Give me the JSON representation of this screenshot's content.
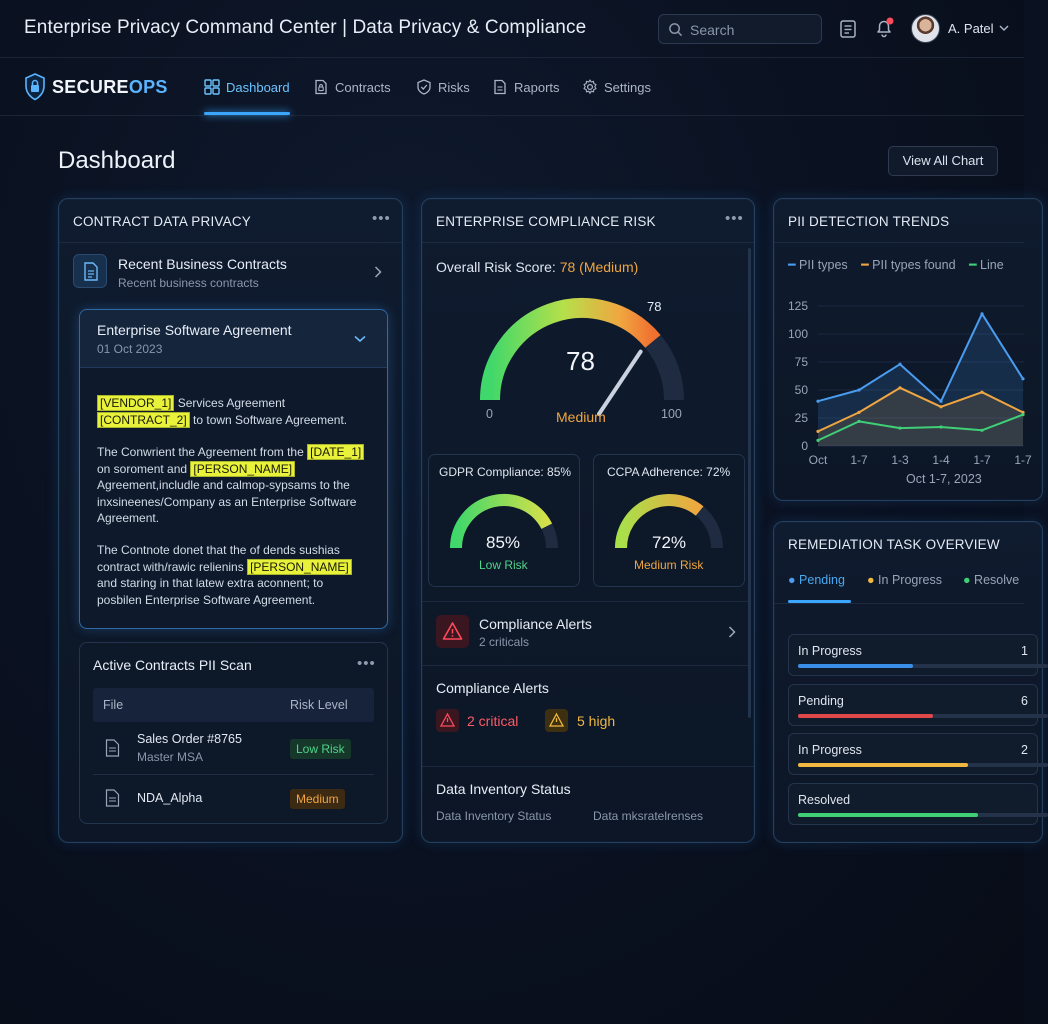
{
  "app": {
    "title": "Enterprise Privacy Command Center | Data Privacy & Compliance"
  },
  "header": {
    "search_placeholder": "Search",
    "user_name": "A. Patel"
  },
  "brand": {
    "name_part1": "SECURE",
    "name_part2": "OPS"
  },
  "nav": {
    "items": [
      {
        "label": "Dashboard",
        "icon": "grid-icon",
        "active": true
      },
      {
        "label": "Contracts",
        "icon": "lock-doc-icon"
      },
      {
        "label": "Risks",
        "icon": "shield-check-icon"
      },
      {
        "label": "Raports",
        "icon": "document-icon"
      },
      {
        "label": "Settings",
        "icon": "gear-icon"
      }
    ]
  },
  "page": {
    "title": "Dashboard",
    "view_all_label": "View All Chart"
  },
  "contract_card": {
    "title": "CONTRACT DATA PRIVACY",
    "recent": {
      "title": "Recent Business Contracts",
      "subtitle": "Recent business contracts"
    },
    "agreement": {
      "title": "Enterprise Software Agreement",
      "date": "01 Oct 2023",
      "p1": {
        "t1": "[VENDOR_1]",
        "t2": " Services Agreement ",
        "t3": "[CONTRACT_2]",
        "t4": " to town Software Agreement."
      },
      "p2": {
        "t1": "The Conwrient the Agreement from the ",
        "t2": "[DATE_1]",
        "t3": " on soroment and ",
        "t4": "[PERSON_NAME]",
        "t5": " Agreement,includle and calmop-sypsams to the inxsineenes/Company as an Enterprise Software Agreement."
      },
      "p3": {
        "t1": "The Contnote donet that the of dends sushias contract with/rawic relienins ",
        "t2": "[PERSON_NAME]",
        "t3": " and staring in that latew extra aconnent; to posbilen Enterprise Software Agreement."
      }
    },
    "scan": {
      "title": "Active Contracts PII Scan",
      "col_file": "File",
      "col_risk": "Risk Level",
      "rows": [
        {
          "file": "Sales Order #8765",
          "sub": "Master MSA",
          "risk": "Low Risk"
        },
        {
          "file": "NDA_Alpha",
          "sub": "",
          "risk": "Medium"
        }
      ]
    }
  },
  "risk_card": {
    "title": "ENTERPRISE COMPLIANCE RISK",
    "overall_label": "Overall Risk Score: ",
    "overall_value": "78 (Medium)",
    "gauge": {
      "value": 78,
      "display": "78",
      "peak_label": "78",
      "status": "Medium",
      "min": "0",
      "max": "100"
    },
    "gdpr": {
      "label": "GDPR Compliance: 85%",
      "value": 85,
      "display": "85%",
      "status": "Low Risk"
    },
    "ccpa": {
      "label": "CCPA Adherence: 72%",
      "value": 72,
      "display": "72%",
      "status": "Medium Risk"
    },
    "alerts_row": {
      "title": "Compliance Alerts",
      "subtitle": "2 criticals"
    },
    "alerts_summary": {
      "title": "Compliance Alerts",
      "critical": "2 critical",
      "high": "5 high"
    },
    "inventory": {
      "title": "Data Inventory Status",
      "sub1": "Data Inventory Status",
      "sub2": "Data mksratelrenses"
    }
  },
  "pii_card": {
    "title": "PII DETECTION TRENDS",
    "colors": {
      "series1": "#4a9cf0",
      "series2": "#f0a640",
      "series3": "#3fcf76"
    }
  },
  "chart_data": {
    "type": "line",
    "title": "PII DETECTION TRENDS",
    "x": [
      "Oct",
      "1-7",
      "1-3",
      "1-4",
      "1-7",
      "1-7"
    ],
    "xlabel": "Oct 1-7, 2023",
    "ylabel": "",
    "ylim": [
      0,
      125
    ],
    "yticks": [
      0,
      25,
      50,
      75,
      100,
      125
    ],
    "legend": "top",
    "series": [
      {
        "name": "PII types",
        "values": [
          40,
          50,
          73,
          40,
          118,
          60
        ]
      },
      {
        "name": "PII types found",
        "values": [
          13,
          30,
          52,
          35,
          48,
          30
        ]
      },
      {
        "name": "Line",
        "values": [
          5,
          22,
          16,
          17,
          14,
          28
        ]
      }
    ]
  },
  "remediation": {
    "title": "REMEDIATION TASK OVERVIEW",
    "tabs": [
      {
        "label": "Pending",
        "color": "#4a9cf0",
        "active": true
      },
      {
        "label": "In Progress",
        "color": "#f0b840"
      },
      {
        "label": "Resolve",
        "color": "#3fcf76"
      }
    ],
    "tasks": [
      {
        "label": "In Progress",
        "count": "1",
        "progress": 0.46,
        "color": "#3a8fe8"
      },
      {
        "label": "Pending",
        "count": "6",
        "progress": 0.54,
        "color": "#e0484a"
      },
      {
        "label": "In Progress",
        "count": "2",
        "progress": 0.68,
        "color": "#f0b840"
      },
      {
        "label": "Resolved",
        "count": "",
        "progress": 0.72,
        "color": "#3fcf76"
      }
    ]
  }
}
